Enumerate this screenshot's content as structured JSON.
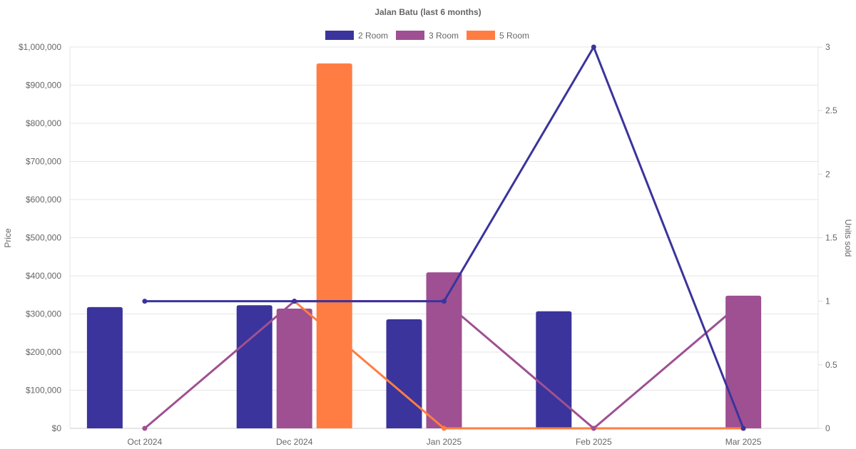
{
  "chart_data": {
    "type": "bar",
    "title": "Jalan Batu (last 6 months)",
    "categories": [
      "Oct 2024",
      "Dec 2024",
      "Jan 2025",
      "Feb 2025",
      "Mar 2025"
    ],
    "ylabel": "Price",
    "y2label": "Units sold",
    "ylim": [
      0,
      1000000
    ],
    "y2lim": [
      0,
      3
    ],
    "yticks": [
      "$0",
      "$100,000",
      "$200,000",
      "$300,000",
      "$400,000",
      "$500,000",
      "$600,000",
      "$700,000",
      "$800,000",
      "$900,000",
      "$1,000,000"
    ],
    "y2ticks": [
      "0",
      "0.5",
      "1",
      "1.5",
      "2",
      "2.5",
      "3"
    ],
    "legend_position": "top",
    "grid": true,
    "series": [
      {
        "name": "2 Room",
        "color": "#3a349c",
        "values": [
          318000,
          323000,
          286000,
          307000,
          null
        ],
        "units": [
          1,
          1,
          1,
          3,
          0
        ]
      },
      {
        "name": "3 Room",
        "color": "#9e5092",
        "values": [
          null,
          314000,
          409000,
          null,
          348000
        ],
        "units": [
          0,
          1,
          1,
          0,
          1
        ]
      },
      {
        "name": "5 Room",
        "color": "#ff7d42",
        "values": [
          null,
          957000,
          null,
          null,
          null
        ],
        "units": [
          null,
          1,
          0,
          0,
          0
        ]
      }
    ]
  }
}
